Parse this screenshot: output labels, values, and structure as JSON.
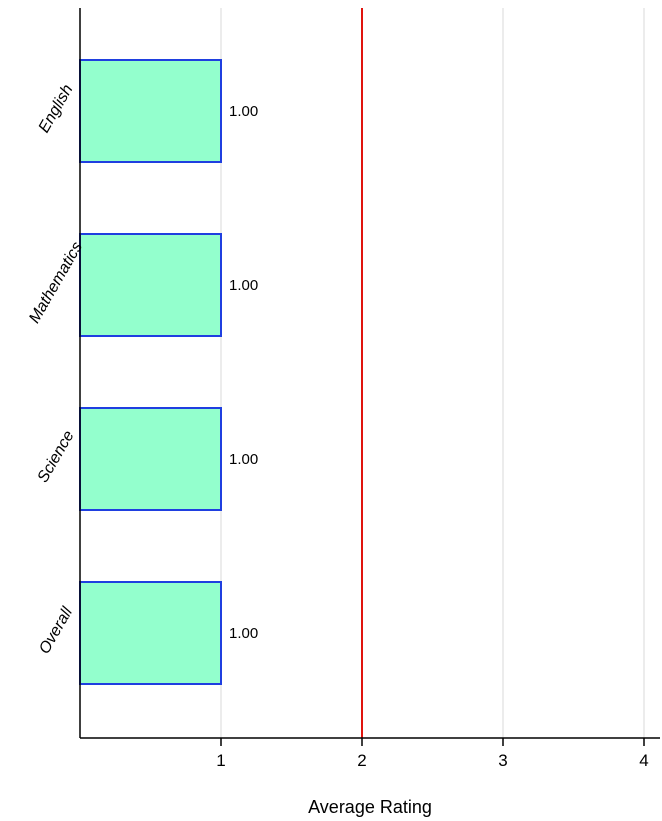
{
  "chart_data": {
    "type": "bar",
    "orientation": "horizontal",
    "categories": [
      "English",
      "Mathematics",
      "Science",
      "Overall"
    ],
    "values": [
      1.0,
      1.0,
      1.0,
      1.0
    ],
    "data_labels": [
      "1.00",
      "1.00",
      "1.00",
      "1.00"
    ],
    "title": "",
    "xlabel": "Average Rating",
    "ylabel": "",
    "xlim": [
      0,
      4.1
    ],
    "x_ticks": [
      1,
      2,
      3,
      4
    ],
    "x_tick_labels": [
      "1",
      "2",
      "3",
      "4"
    ],
    "reference_line": {
      "x": 2,
      "color": "#e0140e"
    },
    "grid": "vertical",
    "colors": {
      "bar_fill": "#93ffcd",
      "bar_edge": "#1f3fe0",
      "grid": "#d9d9d9",
      "axis": "#000000"
    }
  }
}
